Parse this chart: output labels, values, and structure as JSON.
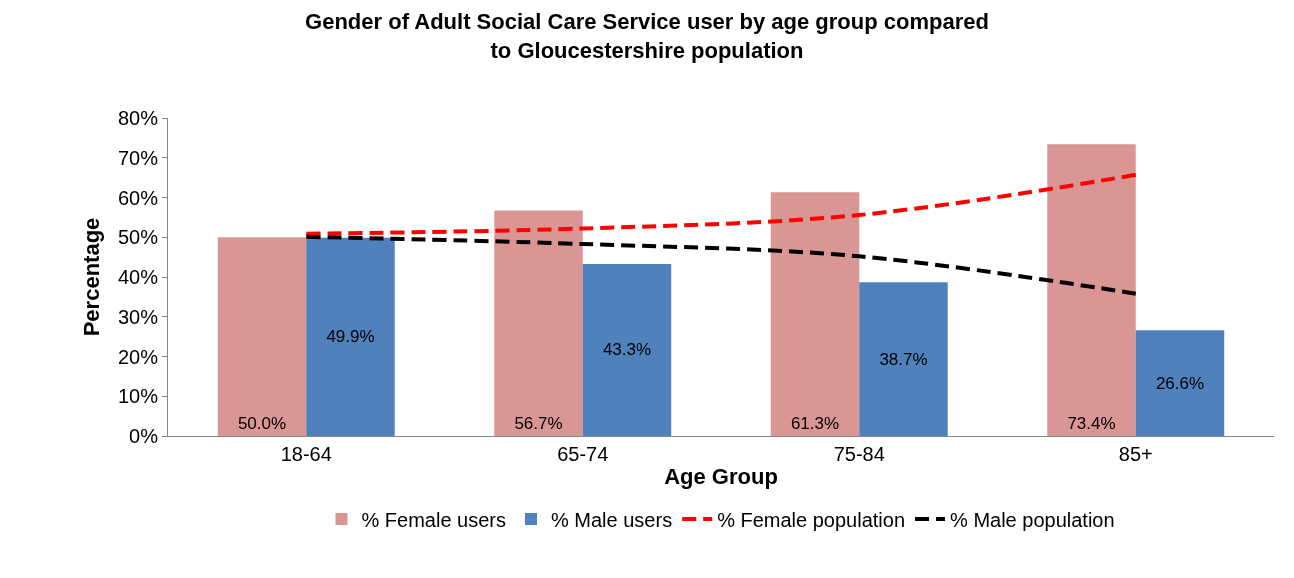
{
  "chart_data": {
    "type": "bar",
    "title": "Gender of Adult Social Care Service user by age group compared to Gloucestershire population",
    "xlabel": "Age Group",
    "ylabel": "Percentage",
    "categories": [
      "18-64",
      "65-74",
      "75-84",
      "85+"
    ],
    "series": [
      {
        "name": "% Female users",
        "color": "#d99694",
        "values": [
          50.0,
          56.7,
          61.3,
          73.4
        ],
        "value_labels": [
          "50.0%",
          "56.7%",
          "61.3%",
          "73.4%"
        ]
      },
      {
        "name": "% Male users",
        "color": "#4f81bd",
        "values": [
          49.9,
          43.3,
          38.7,
          26.6
        ],
        "value_labels": [
          "49.9%",
          "43.3%",
          "38.7%",
          "26.6%"
        ]
      },
      {
        "name": "% Female population",
        "type": "line",
        "color": "#ff0000",
        "line_style": "dashed",
        "marker": "none",
        "values": [
          50.9,
          52.2,
          55.6,
          65.7
        ]
      },
      {
        "name": "% Male population",
        "type": "line",
        "color": "#000000",
        "line_style": "dashed",
        "marker": "none",
        "values": [
          50.1,
          48.3,
          45.2,
          35.8
        ]
      }
    ],
    "ylim": [
      0,
      80
    ],
    "yticks": [
      {
        "value": 0,
        "label": "0%"
      },
      {
        "value": 10,
        "label": "10%"
      },
      {
        "value": 20,
        "label": "20%"
      },
      {
        "value": 30,
        "label": "30%"
      },
      {
        "value": 40,
        "label": "40%"
      },
      {
        "value": 50,
        "label": "50%"
      },
      {
        "value": 60,
        "label": "60%"
      },
      {
        "value": 70,
        "label": "70%"
      },
      {
        "value": 80,
        "label": "80%"
      }
    ],
    "grid": false,
    "legend": "bottom"
  }
}
